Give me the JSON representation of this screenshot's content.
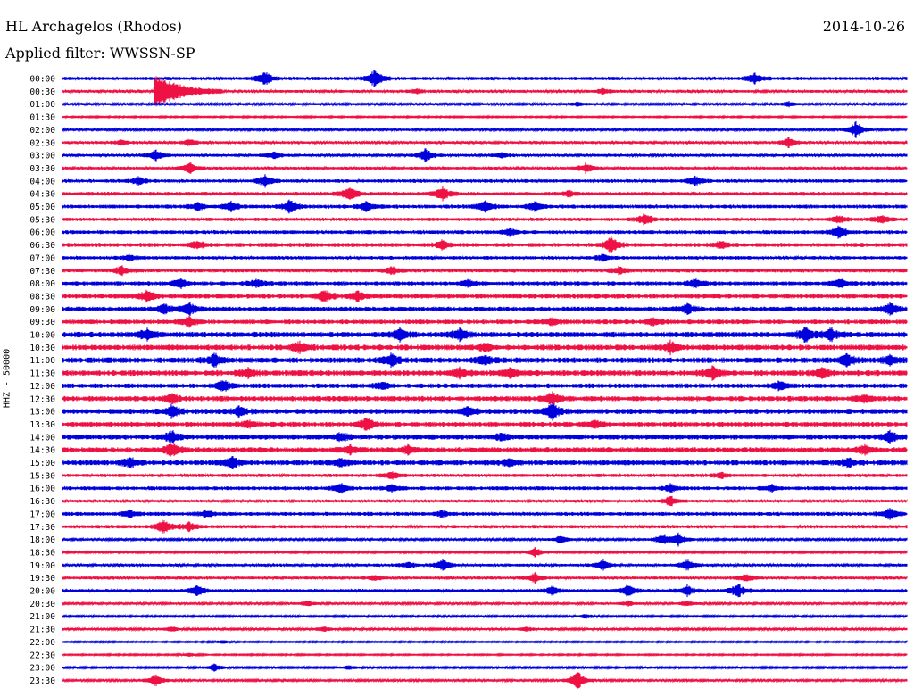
{
  "header": {
    "station": "HL Archagelos (Rhodos)",
    "date": "2014-10-26",
    "filter": "Applied filter: WWSSN-SP"
  },
  "chart_data": {
    "type": "line",
    "ylabel": "HHZ - 50000",
    "colors": [
      "#0000dd",
      "#ee1144"
    ],
    "traces": [
      {
        "label": "00:00",
        "events": [
          {
            "t": 0.24,
            "a": 1.1
          },
          {
            "t": 0.37,
            "a": 1.5
          },
          {
            "t": 0.82,
            "a": 0.9
          }
        ],
        "noise": 0.18
      },
      {
        "label": "00:30",
        "events": [
          {
            "t": 0.11,
            "a": 2.6,
            "coda": true
          },
          {
            "t": 0.42,
            "a": 0.4
          },
          {
            "t": 0.64,
            "a": 0.4
          }
        ],
        "noise": 0.15
      },
      {
        "label": "01:00",
        "events": [
          {
            "t": 0.61,
            "a": 0.3
          },
          {
            "t": 0.86,
            "a": 0.4
          }
        ],
        "noise": 0.12
      },
      {
        "label": "01:30",
        "events": [],
        "noise": 0.08
      },
      {
        "label": "02:00",
        "events": [
          {
            "t": 0.94,
            "a": 1.4
          }
        ],
        "noise": 0.12
      },
      {
        "label": "02:30",
        "events": [
          {
            "t": 0.07,
            "a": 0.4
          },
          {
            "t": 0.15,
            "a": 0.6
          },
          {
            "t": 0.86,
            "a": 0.8
          }
        ],
        "noise": 0.15
      },
      {
        "label": "03:00",
        "events": [
          {
            "t": 0.11,
            "a": 1.0
          },
          {
            "t": 0.25,
            "a": 0.6
          },
          {
            "t": 0.43,
            "a": 1.1
          },
          {
            "t": 0.52,
            "a": 0.5
          }
        ],
        "noise": 0.15
      },
      {
        "label": "03:30",
        "events": [
          {
            "t": 0.15,
            "a": 0.9
          },
          {
            "t": 0.62,
            "a": 0.8
          }
        ],
        "noise": 0.15
      },
      {
        "label": "04:00",
        "events": [
          {
            "t": 0.09,
            "a": 0.7
          },
          {
            "t": 0.24,
            "a": 0.9
          },
          {
            "t": 0.75,
            "a": 0.8
          }
        ],
        "noise": 0.18
      },
      {
        "label": "04:30",
        "events": [
          {
            "t": 0.34,
            "a": 1.2
          },
          {
            "t": 0.45,
            "a": 1.1
          },
          {
            "t": 0.6,
            "a": 0.5
          }
        ],
        "noise": 0.2
      },
      {
        "label": "05:00",
        "events": [
          {
            "t": 0.16,
            "a": 0.7
          },
          {
            "t": 0.2,
            "a": 0.9
          },
          {
            "t": 0.27,
            "a": 1.1
          },
          {
            "t": 0.36,
            "a": 0.8
          },
          {
            "t": 0.5,
            "a": 1.0
          },
          {
            "t": 0.56,
            "a": 0.8
          }
        ],
        "noise": 0.2
      },
      {
        "label": "05:30",
        "events": [
          {
            "t": 0.69,
            "a": 1.0
          },
          {
            "t": 0.92,
            "a": 0.6
          },
          {
            "t": 0.97,
            "a": 0.7
          }
        ],
        "noise": 0.18
      },
      {
        "label": "06:00",
        "events": [
          {
            "t": 0.53,
            "a": 0.6
          },
          {
            "t": 0.92,
            "a": 1.0
          }
        ],
        "noise": 0.2
      },
      {
        "label": "06:30",
        "events": [
          {
            "t": 0.16,
            "a": 0.6
          },
          {
            "t": 0.45,
            "a": 0.7
          },
          {
            "t": 0.65,
            "a": 1.2
          },
          {
            "t": 0.78,
            "a": 0.6
          }
        ],
        "noise": 0.22
      },
      {
        "label": "07:00",
        "events": [
          {
            "t": 0.08,
            "a": 0.5
          },
          {
            "t": 0.64,
            "a": 0.5
          }
        ],
        "noise": 0.18
      },
      {
        "label": "07:30",
        "events": [
          {
            "t": 0.07,
            "a": 0.7
          },
          {
            "t": 0.39,
            "a": 0.6
          },
          {
            "t": 0.66,
            "a": 0.6
          }
        ],
        "noise": 0.2
      },
      {
        "label": "08:00",
        "events": [
          {
            "t": 0.14,
            "a": 0.9
          },
          {
            "t": 0.23,
            "a": 0.7
          },
          {
            "t": 0.48,
            "a": 0.5
          },
          {
            "t": 0.75,
            "a": 0.7
          },
          {
            "t": 0.92,
            "a": 0.7
          }
        ],
        "noise": 0.22
      },
      {
        "label": "08:30",
        "events": [
          {
            "t": 0.1,
            "a": 0.9
          },
          {
            "t": 0.31,
            "a": 1.0
          },
          {
            "t": 0.35,
            "a": 0.9
          }
        ],
        "noise": 0.25
      },
      {
        "label": "09:00",
        "events": [
          {
            "t": 0.12,
            "a": 0.8
          },
          {
            "t": 0.15,
            "a": 1.1
          },
          {
            "t": 0.74,
            "a": 0.8
          },
          {
            "t": 0.98,
            "a": 1.0
          }
        ],
        "noise": 0.25
      },
      {
        "label": "09:30",
        "events": [
          {
            "t": 0.15,
            "a": 0.8
          },
          {
            "t": 0.58,
            "a": 0.5
          },
          {
            "t": 0.7,
            "a": 0.6
          }
        ],
        "noise": 0.25
      },
      {
        "label": "10:00",
        "events": [
          {
            "t": 0.1,
            "a": 0.9
          },
          {
            "t": 0.4,
            "a": 1.1
          },
          {
            "t": 0.47,
            "a": 1.0
          },
          {
            "t": 0.88,
            "a": 1.2
          },
          {
            "t": 0.91,
            "a": 0.9
          }
        ],
        "noise": 0.3
      },
      {
        "label": "10:30",
        "events": [
          {
            "t": 0.28,
            "a": 0.9
          },
          {
            "t": 0.5,
            "a": 0.6
          },
          {
            "t": 0.72,
            "a": 0.9
          }
        ],
        "noise": 0.3
      },
      {
        "label": "11:00",
        "events": [
          {
            "t": 0.18,
            "a": 1.0
          },
          {
            "t": 0.39,
            "a": 1.0
          },
          {
            "t": 0.5,
            "a": 0.7
          },
          {
            "t": 0.93,
            "a": 0.9
          },
          {
            "t": 0.98,
            "a": 0.7
          }
        ],
        "noise": 0.3
      },
      {
        "label": "11:30",
        "events": [
          {
            "t": 0.22,
            "a": 0.8
          },
          {
            "t": 0.47,
            "a": 0.8
          },
          {
            "t": 0.53,
            "a": 0.9
          },
          {
            "t": 0.77,
            "a": 1.0
          },
          {
            "t": 0.9,
            "a": 0.9
          }
        ],
        "noise": 0.3
      },
      {
        "label": "12:00",
        "events": [
          {
            "t": 0.19,
            "a": 0.9
          },
          {
            "t": 0.38,
            "a": 0.6
          },
          {
            "t": 0.85,
            "a": 0.8
          }
        ],
        "noise": 0.25
      },
      {
        "label": "12:30",
        "events": [
          {
            "t": 0.13,
            "a": 0.8
          },
          {
            "t": 0.58,
            "a": 1.0
          },
          {
            "t": 0.95,
            "a": 0.7
          }
        ],
        "noise": 0.28
      },
      {
        "label": "13:00",
        "events": [
          {
            "t": 0.13,
            "a": 1.0
          },
          {
            "t": 0.21,
            "a": 0.8
          },
          {
            "t": 0.48,
            "a": 0.7
          },
          {
            "t": 0.58,
            "a": 1.4
          }
        ],
        "noise": 0.28
      },
      {
        "label": "13:30",
        "events": [
          {
            "t": 0.22,
            "a": 0.6
          },
          {
            "t": 0.36,
            "a": 1.1
          },
          {
            "t": 0.63,
            "a": 0.6
          }
        ],
        "noise": 0.25
      },
      {
        "label": "14:00",
        "events": [
          {
            "t": 0.13,
            "a": 1.0
          },
          {
            "t": 0.33,
            "a": 0.6
          },
          {
            "t": 0.52,
            "a": 0.6
          },
          {
            "t": 0.98,
            "a": 1.0
          }
        ],
        "noise": 0.28
      },
      {
        "label": "14:30",
        "events": [
          {
            "t": 0.13,
            "a": 1.1
          },
          {
            "t": 0.34,
            "a": 0.6
          },
          {
            "t": 0.41,
            "a": 0.7
          },
          {
            "t": 0.95,
            "a": 0.7
          }
        ],
        "noise": 0.28
      },
      {
        "label": "15:00",
        "events": [
          {
            "t": 0.08,
            "a": 0.8
          },
          {
            "t": 0.2,
            "a": 1.0
          },
          {
            "t": 0.33,
            "a": 0.7
          },
          {
            "t": 0.53,
            "a": 0.6
          },
          {
            "t": 0.93,
            "a": 0.7
          }
        ],
        "noise": 0.28
      },
      {
        "label": "15:30",
        "events": [
          {
            "t": 0.39,
            "a": 0.6
          },
          {
            "t": 0.78,
            "a": 0.5
          }
        ],
        "noise": 0.18
      },
      {
        "label": "16:00",
        "events": [
          {
            "t": 0.33,
            "a": 0.8
          },
          {
            "t": 0.39,
            "a": 0.6
          },
          {
            "t": 0.72,
            "a": 0.6
          },
          {
            "t": 0.84,
            "a": 0.6
          }
        ],
        "noise": 0.2
      },
      {
        "label": "16:30",
        "events": [
          {
            "t": 0.72,
            "a": 0.8
          }
        ],
        "noise": 0.15
      },
      {
        "label": "17:00",
        "events": [
          {
            "t": 0.08,
            "a": 0.6
          },
          {
            "t": 0.17,
            "a": 0.6
          },
          {
            "t": 0.45,
            "a": 0.5
          },
          {
            "t": 0.98,
            "a": 1.0
          }
        ],
        "noise": 0.2
      },
      {
        "label": "17:30",
        "events": [
          {
            "t": 0.12,
            "a": 1.2
          },
          {
            "t": 0.15,
            "a": 0.8
          }
        ],
        "noise": 0.18
      },
      {
        "label": "18:00",
        "events": [
          {
            "t": 0.59,
            "a": 0.6
          },
          {
            "t": 0.71,
            "a": 0.9
          },
          {
            "t": 0.73,
            "a": 1.0
          }
        ],
        "noise": 0.12
      },
      {
        "label": "18:30",
        "events": [
          {
            "t": 0.56,
            "a": 0.8
          }
        ],
        "noise": 0.1
      },
      {
        "label": "19:00",
        "events": [
          {
            "t": 0.41,
            "a": 0.5
          },
          {
            "t": 0.45,
            "a": 1.0
          },
          {
            "t": 0.64,
            "a": 0.8
          },
          {
            "t": 0.74,
            "a": 0.9
          }
        ],
        "noise": 0.15
      },
      {
        "label": "19:30",
        "events": [
          {
            "t": 0.37,
            "a": 0.5
          },
          {
            "t": 0.56,
            "a": 0.8
          },
          {
            "t": 0.81,
            "a": 0.7
          }
        ],
        "noise": 0.15
      },
      {
        "label": "20:00",
        "events": [
          {
            "t": 0.16,
            "a": 0.9
          },
          {
            "t": 0.58,
            "a": 0.7
          },
          {
            "t": 0.67,
            "a": 0.9
          },
          {
            "t": 0.74,
            "a": 0.8
          },
          {
            "t": 0.8,
            "a": 1.1
          }
        ],
        "noise": 0.18
      },
      {
        "label": "20:30",
        "events": [
          {
            "t": 0.29,
            "a": 0.4
          },
          {
            "t": 0.67,
            "a": 0.4
          },
          {
            "t": 0.74,
            "a": 0.5
          }
        ],
        "noise": 0.12
      },
      {
        "label": "21:00",
        "events": [
          {
            "t": 0.62,
            "a": 0.4
          }
        ],
        "noise": 0.1
      },
      {
        "label": "21:30",
        "events": [
          {
            "t": 0.13,
            "a": 0.4
          },
          {
            "t": 0.31,
            "a": 0.4
          },
          {
            "t": 0.55,
            "a": 0.4
          }
        ],
        "noise": 0.12
      },
      {
        "label": "22:00",
        "events": [
          {
            "t": 0.19,
            "a": 0.3
          }
        ],
        "noise": 0.08
      },
      {
        "label": "22:30",
        "events": [
          {
            "t": 0.15,
            "a": 0.3
          }
        ],
        "noise": 0.08
      },
      {
        "label": "23:00",
        "events": [
          {
            "t": 0.18,
            "a": 0.6
          },
          {
            "t": 0.34,
            "a": 0.3
          }
        ],
        "noise": 0.1
      },
      {
        "label": "23:30",
        "events": [
          {
            "t": 0.11,
            "a": 1.0
          },
          {
            "t": 0.61,
            "a": 1.6
          }
        ],
        "noise": 0.12
      }
    ]
  }
}
